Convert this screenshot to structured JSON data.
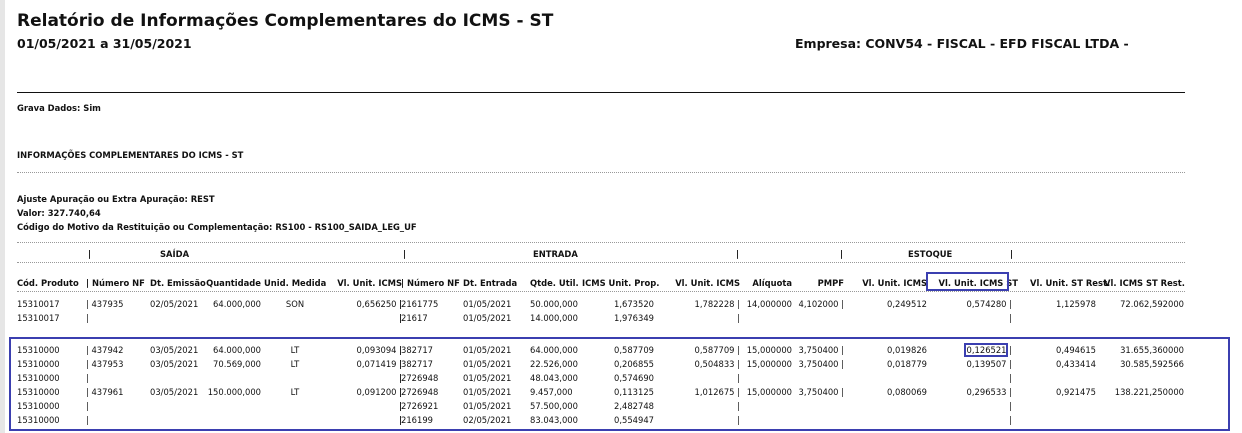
{
  "header": {
    "title": "Relatório de Informações Complementares do ICMS - ST",
    "period": "01/05/2021 a 31/05/2021",
    "company": "Empresa: CONV54 - FISCAL - EFD FISCAL LTDA -"
  },
  "grava_dados": "Grava Dados: Sim",
  "section_title": "INFORMAÇÕES COMPLEMENTARES DO ICMS - ST",
  "ajuste": {
    "line1": "Ajuste Apuração ou Extra Apuração: REST",
    "line2": "Valor: 327.740,64",
    "line3": "Código do Motivo da Restituição ou Complementação: RS100 - RS100_SAIDA_LEG_UF"
  },
  "groups": {
    "saida": "SAÍDA",
    "entrada": "ENTRADA",
    "estoque": "ESTOQUE"
  },
  "columns": {
    "cod": "Cód. Produto",
    "nf_s": "| Número NF",
    "emissao": "Dt. Emissão",
    "qtd": "Quantidade",
    "unid": "Unid. Medida",
    "vl_icms": "Vl. Unit. ICMS",
    "nf_e": "| Número NF",
    "dt_ent": "Dt. Entrada",
    "qtde_util": "Qtde. Util.",
    "icms_prop": "ICMS Unit. Prop.",
    "vl_icms_e": "Vl. Unit. ICMS",
    "aliq": "Alíquota",
    "pmpf": "PMPF",
    "est_icms": "Vl. Unit. ICMS",
    "est_icms_st": "Vl. Unit. ICMS ST",
    "st_rest": "Vl. Unit. ST Rest.",
    "icms_st_rest": "Vl. ICMS ST Rest."
  },
  "rows": [
    {
      "cod": "15310017",
      "nf_s": "| 437935",
      "emissao": "02/05/2021",
      "qtd": "64.000,000",
      "unid": "SON",
      "vl_icms": "0,656250 |",
      "nf_e": "2161775",
      "dt_ent": "01/05/2021",
      "qtde_util": "50.000,000",
      "icms_prop": "1,673520",
      "vl_icms_e": "1,782228 |",
      "aliq": "14,000000",
      "pmpf": "4,102000 |",
      "est_icms": "0,249512",
      "est_icms_st": "0,574280 |",
      "st_rest": "1,125978",
      "icms_st_rest": "72.062,592000"
    },
    {
      "cod": "15310017",
      "nf_s": "|",
      "emissao": "",
      "qtd": "",
      "unid": "",
      "vl_icms": "|",
      "nf_e": "21617",
      "dt_ent": "01/05/2021",
      "qtde_util": "14.000,000",
      "icms_prop": "1,976349",
      "vl_icms_e": "|",
      "aliq": "",
      "pmpf": "",
      "est_icms": "",
      "est_icms_st": "|",
      "st_rest": "",
      "icms_st_rest": ""
    },
    {
      "cod": "15310000",
      "nf_s": "| 437942",
      "emissao": "03/05/2021",
      "qtd": "64.000,000",
      "unid": "LT",
      "vl_icms": "0,093094 |",
      "nf_e": "382717",
      "dt_ent": "01/05/2021",
      "qtde_util": "64.000,000",
      "icms_prop": "0,587709",
      "vl_icms_e": "0,587709 |",
      "aliq": "15,000000",
      "pmpf": "3,750400 |",
      "est_icms": "0,019826",
      "est_icms_st": "0,126521 |",
      "st_rest": "0,494615",
      "icms_st_rest": "31.655,360000"
    },
    {
      "cod": "15310000",
      "nf_s": "| 437953",
      "emissao": "03/05/2021",
      "qtd": "70.569,000",
      "unid": "LT",
      "vl_icms": "0,071419 |",
      "nf_e": "382717",
      "dt_ent": "01/05/2021",
      "qtde_util": "22.526,000",
      "icms_prop": "0,206855",
      "vl_icms_e": "0,504833 |",
      "aliq": "15,000000",
      "pmpf": "3,750400 |",
      "est_icms": "0,018779",
      "est_icms_st": "0,139507 |",
      "st_rest": "0,433414",
      "icms_st_rest": "30.585,592566"
    },
    {
      "cod": "15310000",
      "nf_s": "|",
      "emissao": "",
      "qtd": "",
      "unid": "",
      "vl_icms": "|",
      "nf_e": "2726948",
      "dt_ent": "01/05/2021",
      "qtde_util": "48.043,000",
      "icms_prop": "0,574690",
      "vl_icms_e": "|",
      "aliq": "",
      "pmpf": "",
      "est_icms": "",
      "est_icms_st": "|",
      "st_rest": "",
      "icms_st_rest": ""
    },
    {
      "cod": "15310000",
      "nf_s": "| 437961",
      "emissao": "03/05/2021",
      "qtd": "150.000,000",
      "unid": "LT",
      "vl_icms": "0,091200 |",
      "nf_e": "2726948",
      "dt_ent": "01/05/2021",
      "qtde_util": "9.457,000",
      "icms_prop": "0,113125",
      "vl_icms_e": "1,012675 |",
      "aliq": "15,000000",
      "pmpf": "3,750400 |",
      "est_icms": "0,080069",
      "est_icms_st": "0,296533 |",
      "st_rest": "0,921475",
      "icms_st_rest": "138.221,250000"
    },
    {
      "cod": "15310000",
      "nf_s": "|",
      "emissao": "",
      "qtd": "",
      "unid": "",
      "vl_icms": "|",
      "nf_e": "2726921",
      "dt_ent": "01/05/2021",
      "qtde_util": "57.500,000",
      "icms_prop": "2,482748",
      "vl_icms_e": "|",
      "aliq": "",
      "pmpf": "",
      "est_icms": "",
      "est_icms_st": "|",
      "st_rest": "",
      "icms_st_rest": ""
    },
    {
      "cod": "15310000",
      "nf_s": "|",
      "emissao": "",
      "qtd": "",
      "unid": "",
      "vl_icms": "|",
      "nf_e": "216199",
      "dt_ent": "02/05/2021",
      "qtde_util": "83.043,000",
      "icms_prop": "0,554947",
      "vl_icms_e": "|",
      "aliq": "",
      "pmpf": "",
      "est_icms": "",
      "est_icms_st": "|",
      "st_rest": "",
      "icms_st_rest": ""
    }
  ]
}
